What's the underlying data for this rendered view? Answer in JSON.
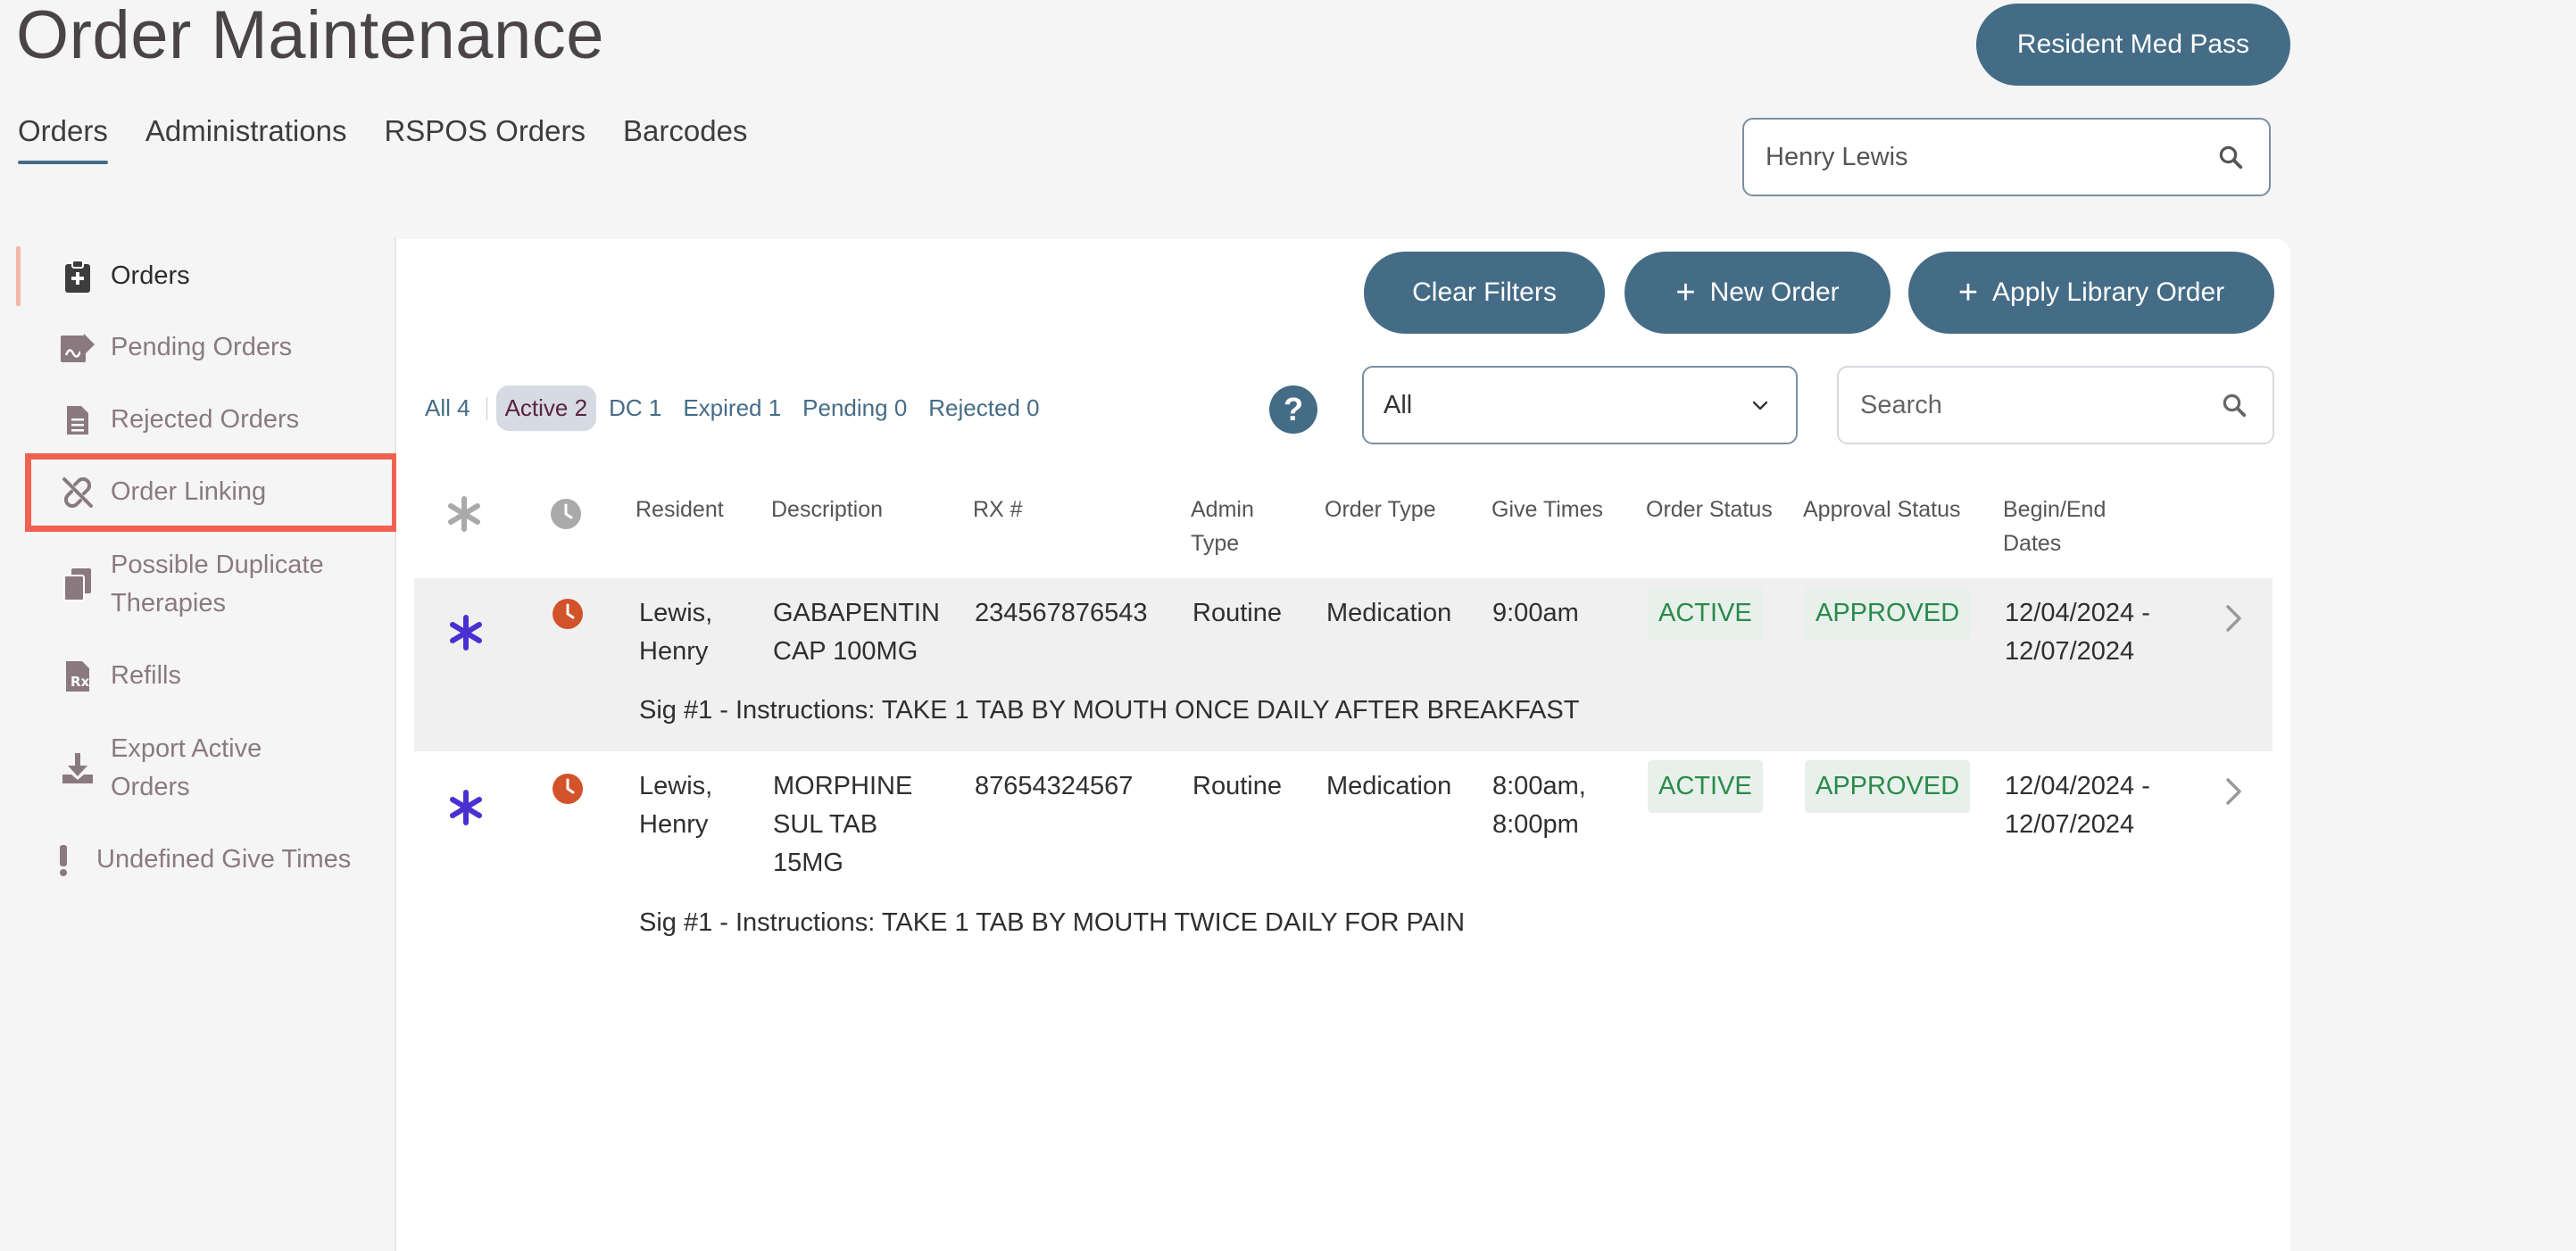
{
  "header": {
    "title": "Order Maintenance",
    "med_pass_label": "Resident Med Pass",
    "resident_search_value": "Henry Lewis"
  },
  "tabs": [
    {
      "label": "Orders",
      "active": true
    },
    {
      "label": "Administrations"
    },
    {
      "label": "RSPOS Orders"
    },
    {
      "label": "Barcodes"
    }
  ],
  "sidebar": {
    "items": [
      {
        "label": "Orders",
        "icon": "clipboard-plus-icon"
      },
      {
        "label": "Pending Orders",
        "icon": "signature-icon"
      },
      {
        "label": "Rejected Orders",
        "icon": "document-icon"
      },
      {
        "label": "Order Linking",
        "icon": "unlink-icon"
      },
      {
        "label": "Possible Duplicate Therapies",
        "icon": "copy-icon"
      },
      {
        "label": "Refills",
        "icon": "rx-document-icon"
      },
      {
        "label": "Export Active Orders",
        "icon": "download-icon"
      },
      {
        "label": "Undefined Give Times",
        "icon": "exclamation-icon"
      }
    ]
  },
  "toolbar": {
    "clear_filters_label": "Clear Filters",
    "new_order_label": "New Order",
    "apply_library_label": "Apply Library Order"
  },
  "filters": [
    {
      "label": "All 4"
    },
    {
      "label": "Active 2",
      "selected": true
    },
    {
      "label": "DC 1"
    },
    {
      "label": "Expired 1"
    },
    {
      "label": "Pending 0"
    },
    {
      "label": "Rejected 0"
    }
  ],
  "help_label": "?",
  "status_select": {
    "value": "All"
  },
  "search": {
    "placeholder": "Search"
  },
  "table": {
    "columns": {
      "resident": "Resident",
      "description": "Description",
      "rx": "RX #",
      "admin_type_1": "Admin",
      "admin_type_2": "Type",
      "order_type": "Order Type",
      "give_times": "Give Times",
      "order_status": "Order Status",
      "approval_status": "Approval Status",
      "dates_1": "Begin/End",
      "dates_2": "Dates"
    },
    "rows": [
      {
        "resident_1": "Lewis,",
        "resident_2": "Henry",
        "description_1": "GABAPENTIN",
        "description_2": "CAP 100MG",
        "description_3": "",
        "rx": "234567876543",
        "admin_type": "Routine",
        "order_type": "Medication",
        "give_times_1": "9:00am",
        "give_times_2": "",
        "order_status": "ACTIVE",
        "approval_status": "APPROVED",
        "dates_1": "12/04/2024 -",
        "dates_2": "12/07/2024",
        "sig": "Sig #1 - Instructions: TAKE 1 TAB BY MOUTH ONCE DAILY AFTER BREAKFAST"
      },
      {
        "resident_1": "Lewis,",
        "resident_2": "Henry",
        "description_1": "MORPHINE",
        "description_2": "SUL TAB",
        "description_3": "15MG",
        "rx": "87654324567",
        "admin_type": "Routine",
        "order_type": "Medication",
        "give_times_1": "8:00am,",
        "give_times_2": "8:00pm",
        "order_status": "ACTIVE",
        "approval_status": "APPROVED",
        "dates_1": "12/04/2024 -",
        "dates_2": "12/07/2024",
        "sig": "Sig #1 - Instructions: TAKE 1 TAB BY MOUTH TWICE DAILY FOR PAIN"
      }
    ]
  },
  "colors": {
    "primary": "#456c86",
    "highlight": "#f0624f",
    "star": "#4a30d0",
    "clock": "#d2522a",
    "status_green": "#2a8a4a"
  }
}
